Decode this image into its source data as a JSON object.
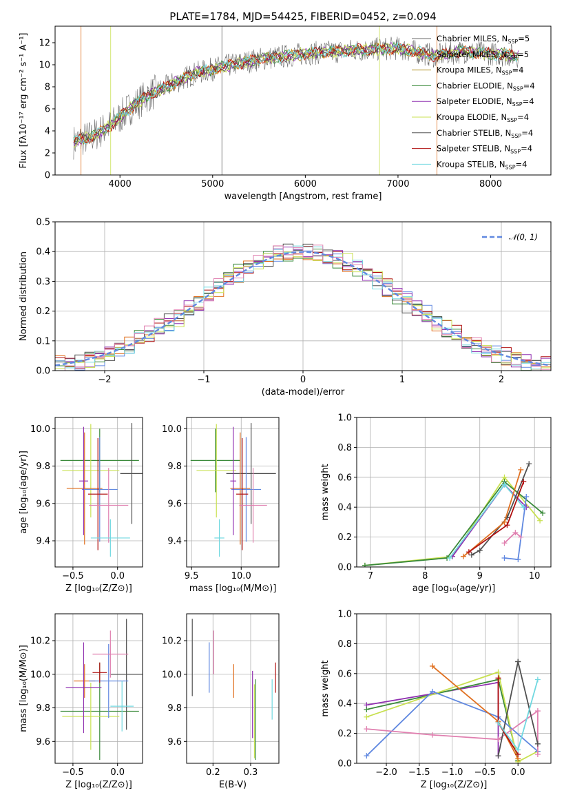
{
  "figure": {
    "title": "PLATE=1784, MJD=54425, FIBERID=0452, z=0.094"
  },
  "colors": [
    "#6a6a6a",
    "#e07020",
    "#b09020",
    "#3a8a3a",
    "#9030b0",
    "#c8e050",
    "#505050",
    "#b01010",
    "#70d8e0",
    "#6088e0",
    "#e080b0"
  ],
  "chart_data": [
    {
      "id": "spectrum",
      "type": "line",
      "xlabel": "wavelength [Angstrom, rest frame]",
      "ylabel": "Flux [fλ10⁻¹⁷ erg cm⁻² s⁻¹ A⁻¹]",
      "xlim": [
        3300,
        8650
      ],
      "ylim": [
        0,
        13.5
      ],
      "xticks": [
        4000,
        5000,
        6000,
        7000,
        8000
      ],
      "yticks": [
        0,
        2,
        4,
        6,
        8,
        10,
        12
      ],
      "x_knots": [
        3500,
        3700,
        3900,
        4100,
        4300,
        4500,
        4800,
        5100,
        5500,
        6000,
        6500,
        7000,
        7400,
        7700,
        8000,
        8300
      ],
      "y_knots": [
        3.0,
        3.5,
        4.5,
        6.0,
        7.2,
        8.0,
        9.2,
        9.8,
        10.5,
        11.0,
        11.3,
        11.5,
        10.8,
        11.2,
        11.0,
        10.8
      ],
      "legend": [
        {
          "label": "Chabrier MILES, N",
          "sub": "SSP",
          "tail": "=5"
        },
        {
          "label": "Salpeter MILES, N",
          "sub": "SSP",
          "tail": "=5"
        },
        {
          "label": "Kroupa MILES, N",
          "sub": "SSP",
          "tail": "=4"
        },
        {
          "label": "Chabrier ELODIE, N",
          "sub": "SSP",
          "tail": "=4"
        },
        {
          "label": "Salpeter ELODIE, N",
          "sub": "SSP",
          "tail": "=4"
        },
        {
          "label": "Kroupa ELODIE, N",
          "sub": "SSP",
          "tail": "=4"
        },
        {
          "label": "Chabrier STELIB, N",
          "sub": "SSP",
          "tail": "=4"
        },
        {
          "label": "Salpeter STELIB, N",
          "sub": "SSP",
          "tail": "=4"
        },
        {
          "label": "Kroupa STELIB, N",
          "sub": "SSP",
          "tail": "=4"
        }
      ],
      "legend_colors": [
        "#6a6a6a",
        "#e07020",
        "#b09020",
        "#3a8a3a",
        "#9030b0",
        "#c8e050",
        "#505050",
        "#b01010",
        "#70d8e0"
      ]
    },
    {
      "id": "residuals",
      "type": "line",
      "xlabel": "(data-model)/error",
      "ylabel": "Normed distribution",
      "xlim": [
        -2.5,
        2.5
      ],
      "ylim": [
        0,
        0.5
      ],
      "xticks": [
        -2,
        -1,
        0,
        1,
        2
      ],
      "xtick_labels": [
        "−2",
        "−1",
        "0",
        "1",
        "2"
      ],
      "yticks": [
        0.0,
        0.1,
        0.2,
        0.3,
        0.4,
        0.5
      ],
      "ytick_labels": [
        "0.0",
        "0.1",
        "0.2",
        "0.3",
        "0.4",
        "0.5"
      ],
      "legend": "𝒩(0, 1)",
      "gauss_color": "#6088e0"
    },
    {
      "id": "age-vs-Z",
      "type": "scatter",
      "xlabel": "Z [log₁₀(Z/Z⊙)]",
      "ylabel": "age  [log₁₀(age/yr)]",
      "xlim": [
        -0.7,
        0.28
      ],
      "ylim": [
        9.26,
        10.06
      ],
      "xticks": [
        -0.5,
        0.0
      ],
      "xtick_labels": [
        "−0.5",
        "0.0"
      ],
      "yticks": [
        9.4,
        9.6,
        9.8,
        10.0
      ],
      "ytick_labels": [
        "9.4",
        "9.6",
        "9.8",
        "10.0"
      ],
      "points": [
        {
          "x": -0.2,
          "y": 9.83,
          "xe": 0.44,
          "ye": 0.17,
          "c": "#3a8a3a"
        },
        {
          "x": -0.3,
          "y": 9.775,
          "xe": 0.32,
          "ye": 0.25,
          "c": "#c8e050"
        },
        {
          "x": 0.16,
          "y": 9.76,
          "xe": 0.13,
          "ye": 0.27,
          "c": "#505050"
        },
        {
          "x": -0.37,
          "y": 9.68,
          "xe": 0.2,
          "ye": 0.3,
          "c": "#e07020"
        },
        {
          "x": -0.2,
          "y": 9.675,
          "xe": 0.2,
          "ye": 0.28,
          "c": "#6088e0"
        },
        {
          "x": -0.22,
          "y": 9.65,
          "xe": 0.11,
          "ye": 0.3,
          "c": "#b01010"
        },
        {
          "x": -0.1,
          "y": 9.59,
          "xe": 0.22,
          "ye": 0.2,
          "c": "#e080b0"
        },
        {
          "x": -0.08,
          "y": 9.415,
          "xe": 0.22,
          "ye": 0.1,
          "c": "#70d8e0"
        },
        {
          "x": -0.38,
          "y": 9.72,
          "xe": 0.05,
          "ye": 0.29,
          "c": "#9030b0"
        }
      ]
    },
    {
      "id": "age-vs-mass",
      "type": "scatter",
      "xlabel": "mass [log₁₀(M/M⊙)]",
      "xlim": [
        9.45,
        10.38
      ],
      "ylim": [
        9.26,
        10.06
      ],
      "xticks": [
        9.5,
        10.0
      ],
      "xtick_labels": [
        "9.5",
        "10.0"
      ],
      "yticks": [
        9.4,
        9.6,
        9.8,
        10.0
      ],
      "ytick_labels": [
        "9.4",
        "9.6",
        "9.8",
        "10.0"
      ],
      "points": [
        {
          "x": 9.74,
          "y": 9.83,
          "xe": 0.25,
          "ye": 0.17,
          "c": "#3a8a3a"
        },
        {
          "x": 9.75,
          "y": 9.775,
          "xe": 0.2,
          "ye": 0.25,
          "c": "#c8e050"
        },
        {
          "x": 10.1,
          "y": 9.76,
          "xe": 0.25,
          "ye": 0.27,
          "c": "#505050"
        },
        {
          "x": 9.99,
          "y": 9.68,
          "xe": 0.1,
          "ye": 0.3,
          "c": "#e07020"
        },
        {
          "x": 10.05,
          "y": 9.675,
          "xe": 0.15,
          "ye": 0.28,
          "c": "#6088e0"
        },
        {
          "x": 10.01,
          "y": 9.65,
          "xe": 0.06,
          "ye": 0.3,
          "c": "#b01010"
        },
        {
          "x": 10.12,
          "y": 9.59,
          "xe": 0.14,
          "ye": 0.2,
          "c": "#e080b0"
        },
        {
          "x": 9.78,
          "y": 9.415,
          "xe": 0.05,
          "ye": 0.1,
          "c": "#70d8e0"
        },
        {
          "x": 9.92,
          "y": 9.72,
          "xe": 0.03,
          "ye": 0.29,
          "c": "#9030b0"
        }
      ]
    },
    {
      "id": "massweight-vs-age",
      "type": "line",
      "xlabel": "age  [log₁₀(age/yr)]",
      "ylabel": "mass weight",
      "xlim": [
        6.75,
        10.3
      ],
      "ylim": [
        0,
        1.0
      ],
      "xticks": [
        7,
        8,
        9,
        10
      ],
      "xtick_labels": [
        "7",
        "8",
        "9",
        "10"
      ],
      "yticks": [
        0.0,
        0.2,
        0.4,
        0.6,
        0.8,
        1.0
      ],
      "ytick_labels": [
        "0.0",
        "0.2",
        "0.4",
        "0.6",
        "0.8",
        "1.0"
      ],
      "series": [
        {
          "c": "#c8e050",
          "x": [
            6.9,
            8.5,
            9.45,
            10.1
          ],
          "y": [
            0.01,
            0.07,
            0.6,
            0.31
          ]
        },
        {
          "c": "#3a8a3a",
          "x": [
            6.9,
            8.4,
            9.45,
            10.15
          ],
          "y": [
            0.01,
            0.06,
            0.57,
            0.36
          ]
        },
        {
          "c": "#9030b0",
          "x": [
            8.5,
            9.45,
            9.85
          ],
          "y": [
            0.07,
            0.55,
            0.4
          ]
        },
        {
          "c": "#70d8e0",
          "x": [
            8.45,
            9.45,
            9.8
          ],
          "y": [
            0.06,
            0.55,
            0.4
          ]
        },
        {
          "c": "#505050",
          "x": [
            8.85,
            9.0,
            9.5,
            9.9
          ],
          "y": [
            0.08,
            0.11,
            0.33,
            0.69
          ]
        },
        {
          "c": "#e07020",
          "x": [
            8.7,
            9.45,
            9.75
          ],
          "y": [
            0.07,
            0.3,
            0.65
          ]
        },
        {
          "c": "#b01010",
          "x": [
            8.8,
            9.5,
            9.8
          ],
          "y": [
            0.1,
            0.28,
            0.57
          ]
        },
        {
          "c": "#6088e0",
          "x": [
            9.45,
            9.7,
            9.85
          ],
          "y": [
            0.06,
            0.05,
            0.47
          ]
        },
        {
          "c": "#e080b0",
          "x": [
            9.45,
            9.65,
            9.75
          ],
          "y": [
            0.16,
            0.23,
            0.2
          ]
        }
      ]
    },
    {
      "id": "mass-vs-Z",
      "type": "scatter",
      "xlabel": "Z [log₁₀(Z/Z⊙)]",
      "ylabel": "mass [log₁₀(M/M⊙)]",
      "xlim": [
        -0.7,
        0.28
      ],
      "ylim": [
        9.47,
        10.36
      ],
      "xticks": [
        -0.5,
        0.0
      ],
      "xtick_labels": [
        "−0.5",
        "0.0"
      ],
      "yticks": [
        9.6,
        9.8,
        10.0,
        10.2
      ],
      "ytick_labels": [
        "9.6",
        "9.8",
        "10.0",
        "10.2"
      ],
      "points": [
        {
          "x": -0.2,
          "y": 9.78,
          "xe": 0.44,
          "ye": 0.29,
          "c": "#3a8a3a"
        },
        {
          "x": -0.3,
          "y": 9.75,
          "xe": 0.32,
          "ye": 0.2,
          "c": "#c8e050"
        },
        {
          "x": 0.1,
          "y": 10.0,
          "xe": 0.18,
          "ye": 0.33,
          "c": "#505050"
        },
        {
          "x": -0.37,
          "y": 9.96,
          "xe": 0.12,
          "ye": 0.1,
          "c": "#e07020"
        },
        {
          "x": -0.1,
          "y": 9.96,
          "xe": 0.22,
          "ye": 0.22,
          "c": "#6088e0"
        },
        {
          "x": -0.2,
          "y": 10.01,
          "xe": 0.08,
          "ye": 0.06,
          "c": "#b01010"
        },
        {
          "x": -0.08,
          "y": 10.12,
          "xe": 0.2,
          "ye": 0.14,
          "c": "#e080b0"
        },
        {
          "x": 0.05,
          "y": 9.81,
          "xe": 0.13,
          "ye": 0.15,
          "c": "#70d8e0"
        },
        {
          "x": -0.38,
          "y": 9.92,
          "xe": 0.2,
          "ye": 0.27,
          "c": "#9030b0"
        }
      ]
    },
    {
      "id": "mass-vs-ebv",
      "type": "scatter",
      "xlabel": "E(B-V)",
      "xlim": [
        0.13,
        0.375
      ],
      "ylim": [
        9.47,
        10.36
      ],
      "xticks": [
        0.2,
        0.3
      ],
      "xtick_labels": [
        "0.2",
        "0.3"
      ],
      "yticks": [
        9.6,
        9.8,
        10.0,
        10.2
      ],
      "ytick_labels": [
        "9.6",
        "9.8",
        "10.0",
        "10.2"
      ],
      "points": [
        {
          "x": 0.145,
          "y": 10.1,
          "xe": 0,
          "ye": 0.23,
          "c": "#505050"
        },
        {
          "x": 0.19,
          "y": 10.04,
          "xe": 0,
          "ye": 0.15,
          "c": "#6088e0"
        },
        {
          "x": 0.202,
          "y": 10.13,
          "xe": 0,
          "ye": 0.13,
          "c": "#e080b0"
        },
        {
          "x": 0.255,
          "y": 9.96,
          "xe": 0,
          "ye": 0.1,
          "c": "#e07020"
        },
        {
          "x": 0.305,
          "y": 9.82,
          "xe": 0,
          "ye": 0.2,
          "c": "#9030b0"
        },
        {
          "x": 0.313,
          "y": 9.73,
          "xe": 0,
          "ye": 0.24,
          "c": "#3a8a3a"
        },
        {
          "x": 0.31,
          "y": 9.72,
          "xe": 0,
          "ye": 0.22,
          "c": "#c8e050"
        },
        {
          "x": 0.357,
          "y": 9.85,
          "xe": 0,
          "ye": 0.12,
          "c": "#70d8e0"
        },
        {
          "x": 0.366,
          "y": 9.98,
          "xe": 0,
          "ye": 0.09,
          "c": "#b01010"
        }
      ]
    },
    {
      "id": "massweight-vs-Z",
      "type": "line",
      "xlabel": "Z [log₁₀(Z/Z⊙)]",
      "ylabel": "mass weight",
      "xlim": [
        -2.45,
        0.5
      ],
      "ylim": [
        0,
        1.0
      ],
      "xticks": [
        -2.0,
        -1.5,
        -1.0,
        -0.5,
        0.0
      ],
      "xtick_labels": [
        "−2.0",
        "−1.5",
        "−1.0",
        "−0.5",
        "0.0"
      ],
      "yticks": [
        0.0,
        0.2,
        0.4,
        0.6,
        0.8,
        1.0
      ],
      "ytick_labels": [
        "0.0",
        "0.2",
        "0.4",
        "0.6",
        "0.8",
        "1.0"
      ],
      "series": [
        {
          "c": "#9030b0",
          "x": [
            -2.3,
            -0.3,
            -0.3
          ],
          "y": [
            0.39,
            0.54,
            0.05
          ]
        },
        {
          "c": "#3a8a3a",
          "x": [
            -2.3,
            -0.3,
            0.0
          ],
          "y": [
            0.36,
            0.56,
            0.02
          ]
        },
        {
          "c": "#c8e050",
          "x": [
            -2.3,
            -0.3,
            0.0,
            0.3
          ],
          "y": [
            0.31,
            0.61,
            0.01,
            0.08
          ]
        },
        {
          "c": "#6088e0",
          "x": [
            -2.3,
            -1.3,
            -0.3,
            0.3
          ],
          "y": [
            0.05,
            0.48,
            0.31,
            0.08
          ]
        },
        {
          "c": "#e080b0",
          "x": [
            -2.3,
            -1.3,
            -0.3,
            0.3,
            0.3
          ],
          "y": [
            0.23,
            0.19,
            0.16,
            0.35,
            0.06
          ]
        },
        {
          "c": "#e07020",
          "x": [
            -1.3,
            -0.3,
            0.0
          ],
          "y": [
            0.65,
            0.28,
            0.03
          ]
        },
        {
          "c": "#505050",
          "x": [
            -0.3,
            0.0,
            0.0,
            0.3
          ],
          "y": [
            0.05,
            0.68,
            0.68,
            0.13
          ]
        },
        {
          "c": "#b01010",
          "x": [
            -0.3,
            -0.3,
            0.0
          ],
          "y": [
            0.57,
            0.27,
            0.06
          ]
        },
        {
          "c": "#70d8e0",
          "x": [
            -0.3,
            0.0,
            0.3
          ],
          "y": [
            0.27,
            0.09,
            0.56
          ]
        }
      ]
    }
  ]
}
